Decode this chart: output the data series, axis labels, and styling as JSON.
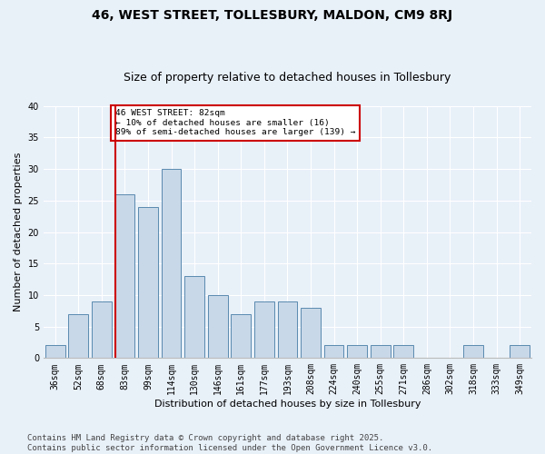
{
  "title": "46, WEST STREET, TOLLESBURY, MALDON, CM9 8RJ",
  "subtitle": "Size of property relative to detached houses in Tollesbury",
  "xlabel": "Distribution of detached houses by size in Tollesbury",
  "ylabel": "Number of detached properties",
  "categories": [
    "36sqm",
    "52sqm",
    "68sqm",
    "83sqm",
    "99sqm",
    "114sqm",
    "130sqm",
    "146sqm",
    "161sqm",
    "177sqm",
    "193sqm",
    "208sqm",
    "224sqm",
    "240sqm",
    "255sqm",
    "271sqm",
    "286sqm",
    "302sqm",
    "318sqm",
    "333sqm",
    "349sqm"
  ],
  "values": [
    2,
    7,
    9,
    26,
    24,
    30,
    13,
    10,
    7,
    9,
    9,
    8,
    2,
    2,
    2,
    2,
    0,
    0,
    2,
    0,
    2
  ],
  "bar_color": "#c8d8e8",
  "bar_edge_color": "#5a8ab0",
  "vline_x_index": 3,
  "vline_color": "#cc0000",
  "annotation_text": "46 WEST STREET: 82sqm\n← 10% of detached houses are smaller (16)\n89% of semi-detached houses are larger (139) →",
  "annotation_box_color": "#cc0000",
  "ylim": [
    0,
    40
  ],
  "yticks": [
    0,
    5,
    10,
    15,
    20,
    25,
    30,
    35,
    40
  ],
  "bg_color": "#e8f0f8",
  "plot_bg_color": "#e8f0f8",
  "grid_color": "#ffffff",
  "footer_text": "Contains HM Land Registry data © Crown copyright and database right 2025.\nContains public sector information licensed under the Open Government Licence v3.0.",
  "title_fontsize": 10,
  "subtitle_fontsize": 9,
  "label_fontsize": 8,
  "tick_fontsize": 7,
  "footer_fontsize": 6.5
}
